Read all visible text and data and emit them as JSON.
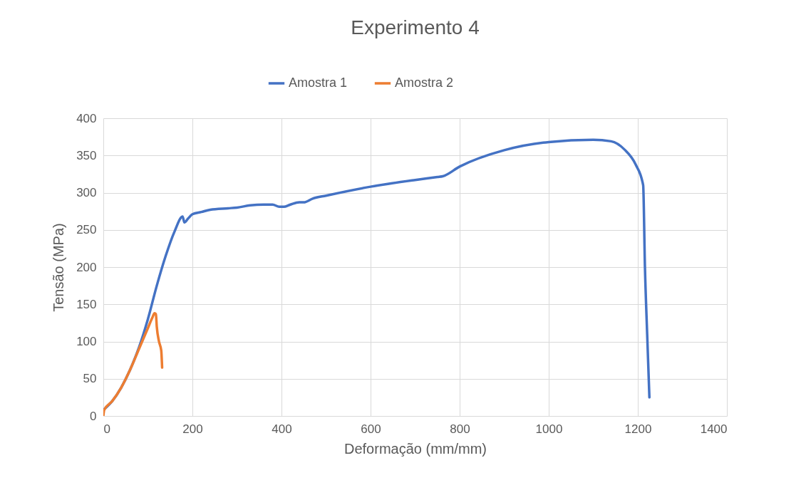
{
  "chart_data": {
    "type": "line",
    "title": "Experimento 4",
    "xlabel": "Deformação (mm/mm)",
    "ylabel": "Tensão (MPa)",
    "xlim": [
      0,
      1400
    ],
    "xticks": [
      0,
      200,
      400,
      600,
      800,
      1000,
      1200,
      1400
    ],
    "ylim": [
      0,
      400
    ],
    "yticks": [
      0,
      50,
      100,
      150,
      200,
      250,
      300,
      350,
      400
    ],
    "grid": true,
    "legend": "top",
    "marker": "none",
    "line_style": "solid",
    "series": [
      {
        "name": "Amostra 1",
        "color": "#4472c4",
        "x": [
          0,
          20,
          40,
          60,
          80,
          100,
          120,
          140,
          160,
          178,
          182,
          190,
          200,
          220,
          240,
          280,
          300,
          330,
          360,
          380,
          395,
          405,
          420,
          440,
          450,
          470,
          500,
          600,
          700,
          750,
          762,
          800,
          900,
          1000,
          1100,
          1140,
          1170,
          1195,
          1212,
          1216,
          1221,
          1226
        ],
        "values": [
          8,
          20,
          38,
          62,
          92,
          130,
          175,
          215,
          248,
          268,
          260,
          265,
          271,
          274,
          277,
          279,
          280,
          283,
          284,
          284,
          281,
          281,
          284,
          287,
          287,
          292,
          296,
          308,
          317,
          321,
          322,
          335,
          357,
          368,
          371,
          369,
          358,
          338,
          310,
          200,
          110,
          25
        ]
      },
      {
        "name": "Amostra 2",
        "color": "#ed7d31",
        "x": [
          0,
          2,
          20,
          40,
          60,
          80,
          100,
          110,
          115,
          118,
          120,
          125,
          130,
          132
        ],
        "values": [
          0,
          8,
          20,
          38,
          62,
          90,
          118,
          132,
          138,
          137,
          120,
          100,
          88,
          65
        ]
      }
    ]
  }
}
